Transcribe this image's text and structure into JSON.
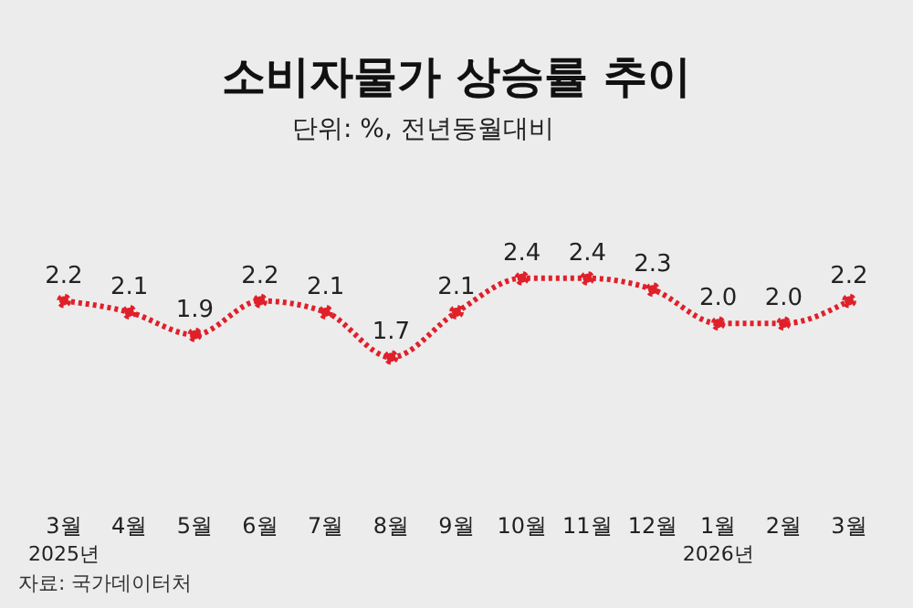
{
  "chart_data": {
    "type": "line",
    "title": "소비자물가 상승률 추이",
    "subtitle": "단위: %, 전년동월대비",
    "categories": [
      "3월\n2025년",
      "4월",
      "5월",
      "6월",
      "7월",
      "8월",
      "9월",
      "10월",
      "11월",
      "12월",
      "1월\n2026년",
      "2월",
      "3월"
    ],
    "series": [
      {
        "color": "#e0202a",
        "values": [
          2.2,
          2.1,
          1.9,
          2.2,
          2.1,
          1.7,
          2.1,
          2.4,
          2.4,
          2.3,
          2.0,
          2.0,
          2.2
        ],
        "value_labels": [
          "2.2",
          "2.1",
          "1.9",
          "2.2",
          "2.1",
          "1.7",
          "2.1",
          "2.4",
          "2.4",
          "2.3",
          "2.0",
          "2.0",
          "2.2"
        ]
      }
    ],
    "marker": "circle",
    "line_style": "dotted",
    "annotations": [
      "자료: 국가데이터처"
    ]
  }
}
